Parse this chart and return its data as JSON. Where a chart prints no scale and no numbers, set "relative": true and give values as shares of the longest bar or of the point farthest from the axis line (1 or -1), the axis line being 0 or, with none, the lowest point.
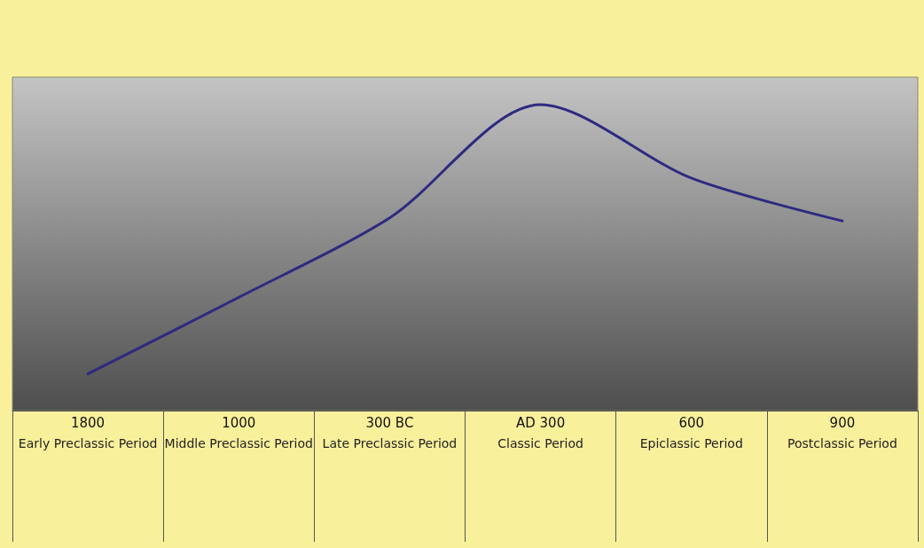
{
  "chart_data": {
    "type": "line",
    "relative": true,
    "categories": [
      "1800\nEarly Preclassic Period",
      "1000\nMiddle Preclassic Period",
      "300 BC\nLate Preclassic Period",
      "AD 300\nClassic Period",
      "600\nEpiclassic Period",
      "900\nPostclassic Period"
    ],
    "series": [
      {
        "color": "#2e2a80",
        "values": [
          0.12,
          0.37,
          0.63,
          1,
          0.76,
          0.62
        ]
      }
    ],
    "marker": "none",
    "line_style": "solid",
    "grid": false
  }
}
